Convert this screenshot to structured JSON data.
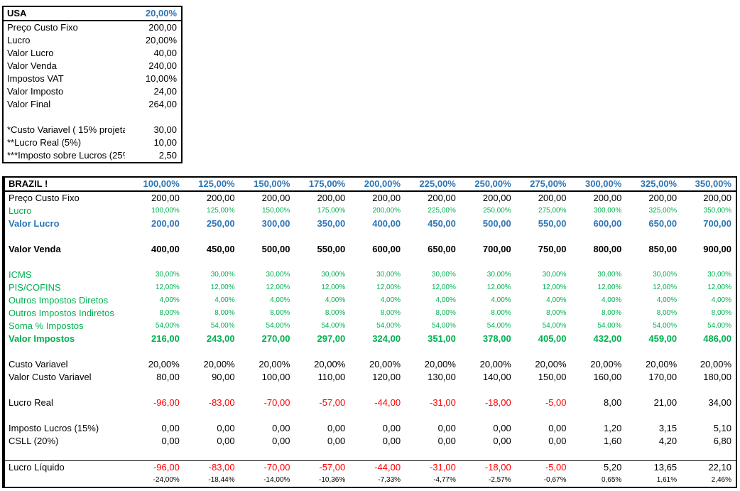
{
  "colors": {
    "blue": "#2E75B6",
    "green": "#00B050",
    "red": "#FF0000"
  },
  "usa_table": {
    "title": "USA",
    "title_value": "20,00%",
    "rows": [
      {
        "label": "Preço Custo Fixo",
        "value": "200,00"
      },
      {
        "label": "Lucro",
        "value": "20,00%"
      },
      {
        "label": "Valor Lucro",
        "value": "40,00"
      },
      {
        "label": "Valor Venda",
        "value": "240,00"
      },
      {
        "label": "Impostos VAT",
        "value": "10,00%"
      },
      {
        "label": "Valor Imposto",
        "value": "24,00"
      },
      {
        "label": "Valor Final",
        "value": "264,00"
      },
      {
        "label": "",
        "value": ""
      },
      {
        "label": "*Custo Variavel ( 15% projeta",
        "value": "30,00"
      },
      {
        "label": "**Lucro Real (5%)",
        "value": "10,00"
      },
      {
        "label": "***Imposto sobre Lucros (25%",
        "value": "2,50"
      }
    ]
  },
  "brazil_table": {
    "title": "BRAZIL !",
    "headers": [
      "100,00%",
      "125,00%",
      "150,00%",
      "175,00%",
      "200,00%",
      "225,00%",
      "250,00%",
      "275,00%",
      "300,00%",
      "325,00%",
      "350,00%"
    ],
    "rows": [
      {
        "label": "Preço Custo Fixo",
        "style": "normal",
        "values": [
          "200,00",
          "200,00",
          "200,00",
          "200,00",
          "200,00",
          "200,00",
          "200,00",
          "200,00",
          "200,00",
          "200,00",
          "200,00"
        ]
      },
      {
        "label": "Lucro",
        "style": "pct-green",
        "values": [
          "100,00%",
          "125,00%",
          "150,00%",
          "175,00%",
          "200,00%",
          "225,00%",
          "250,00%",
          "275,00%",
          "300,00%",
          "325,00%",
          "350,00%"
        ]
      },
      {
        "label": "Valor Lucro",
        "style": "blue-bold",
        "values": [
          "200,00",
          "250,00",
          "300,00",
          "350,00",
          "400,00",
          "450,00",
          "500,00",
          "550,00",
          "600,00",
          "650,00",
          "700,00"
        ]
      },
      {
        "label": "",
        "style": "blank"
      },
      {
        "label": "Valor Venda",
        "style": "bold",
        "values": [
          "400,00",
          "450,00",
          "500,00",
          "550,00",
          "600,00",
          "650,00",
          "700,00",
          "750,00",
          "800,00",
          "850,00",
          "900,00"
        ]
      },
      {
        "label": "",
        "style": "blank"
      },
      {
        "label": "ICMS",
        "style": "pct-green",
        "values": [
          "30,00%",
          "30,00%",
          "30,00%",
          "30,00%",
          "30,00%",
          "30,00%",
          "30,00%",
          "30,00%",
          "30,00%",
          "30,00%",
          "30,00%"
        ]
      },
      {
        "label": "PIS/COFINS",
        "style": "pct-green",
        "values": [
          "12,00%",
          "12,00%",
          "12,00%",
          "12,00%",
          "12,00%",
          "12,00%",
          "12,00%",
          "12,00%",
          "12,00%",
          "12,00%",
          "12,00%"
        ]
      },
      {
        "label": "Outros Impostos Diretos",
        "style": "pct-green",
        "values": [
          "4,00%",
          "4,00%",
          "4,00%",
          "4,00%",
          "4,00%",
          "4,00%",
          "4,00%",
          "4,00%",
          "4,00%",
          "4,00%",
          "4,00%"
        ]
      },
      {
        "label": "Outros Impostos Indiretos",
        "style": "pct-green",
        "values": [
          "8,00%",
          "8,00%",
          "8,00%",
          "8,00%",
          "8,00%",
          "8,00%",
          "8,00%",
          "8,00%",
          "8,00%",
          "8,00%",
          "8,00%"
        ]
      },
      {
        "label": "Soma % Impostos",
        "style": "pct-green",
        "values": [
          "54,00%",
          "54,00%",
          "54,00%",
          "54,00%",
          "54,00%",
          "54,00%",
          "54,00%",
          "54,00%",
          "54,00%",
          "54,00%",
          "54,00%"
        ]
      },
      {
        "label": "Valor Impostos",
        "style": "green-bold",
        "values": [
          "216,00",
          "243,00",
          "270,00",
          "297,00",
          "324,00",
          "351,00",
          "378,00",
          "405,00",
          "432,00",
          "459,00",
          "486,00"
        ]
      },
      {
        "label": "",
        "style": "blank"
      },
      {
        "label": "Custo Variavel",
        "style": "normal",
        "values": [
          "20,00%",
          "20,00%",
          "20,00%",
          "20,00%",
          "20,00%",
          "20,00%",
          "20,00%",
          "20,00%",
          "20,00%",
          "20,00%",
          "20,00%"
        ]
      },
      {
        "label": "Valor Custo Variavel",
        "style": "normal",
        "values": [
          "80,00",
          "90,00",
          "100,00",
          "110,00",
          "120,00",
          "130,00",
          "140,00",
          "150,00",
          "160,00",
          "170,00",
          "180,00"
        ]
      },
      {
        "label": "",
        "style": "blank"
      },
      {
        "label": "Lucro Real",
        "style": "posneg",
        "values": [
          "-96,00",
          "-83,00",
          "-70,00",
          "-57,00",
          "-44,00",
          "-31,00",
          "-18,00",
          "-5,00",
          "8,00",
          "21,00",
          "34,00"
        ]
      },
      {
        "label": "",
        "style": "blank"
      },
      {
        "label": "Imposto Lucros (15%)",
        "style": "normal",
        "values": [
          "0,00",
          "0,00",
          "0,00",
          "0,00",
          "0,00",
          "0,00",
          "0,00",
          "0,00",
          "1,20",
          "3,15",
          "5,10"
        ]
      },
      {
        "label": "CSLL (20%)",
        "style": "normal",
        "values": [
          "0,00",
          "0,00",
          "0,00",
          "0,00",
          "0,00",
          "0,00",
          "0,00",
          "0,00",
          "1,60",
          "4,20",
          "6,80"
        ]
      },
      {
        "label": "",
        "style": "blank"
      },
      {
        "label": "Lucro Líquido",
        "style": "total-posneg",
        "values": [
          "-96,00",
          "-83,00",
          "-70,00",
          "-57,00",
          "-44,00",
          "-31,00",
          "-18,00",
          "-5,00",
          "5,20",
          "13,65",
          "22,10"
        ]
      },
      {
        "label": "",
        "style": "pct-small",
        "values": [
          "-24,00%",
          "-18,44%",
          "-14,00%",
          "-10,36%",
          "-7,33%",
          "-4,77%",
          "-2,57%",
          "-0,67%",
          "0,65%",
          "1,61%",
          "2,46%"
        ]
      }
    ]
  }
}
